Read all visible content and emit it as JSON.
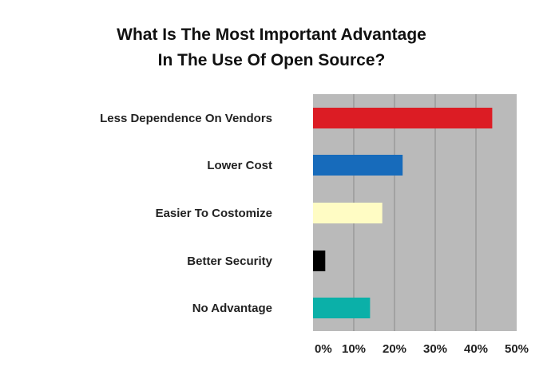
{
  "chart_data": {
    "type": "bar",
    "orientation": "horizontal",
    "title_lines": [
      "What Is The Most Important Advantage",
      "In The Use Of Open Source?"
    ],
    "categories": [
      "Less Dependence On Vendors",
      "Lower Cost",
      "Easier To Costomize",
      "Better Security",
      "No Advantage"
    ],
    "values": [
      44,
      22,
      17,
      3,
      14
    ],
    "colors": [
      "#dc1c24",
      "#176bbb",
      "#fffcc4",
      "#000000",
      "#0bb0a8"
    ],
    "xlim": [
      0,
      50
    ],
    "x_ticks": [
      "0%",
      "10%",
      "20%",
      "30%",
      "40%",
      "50%"
    ],
    "grid": true,
    "plot_background": "#bababa",
    "xlabel": "",
    "ylabel": ""
  }
}
